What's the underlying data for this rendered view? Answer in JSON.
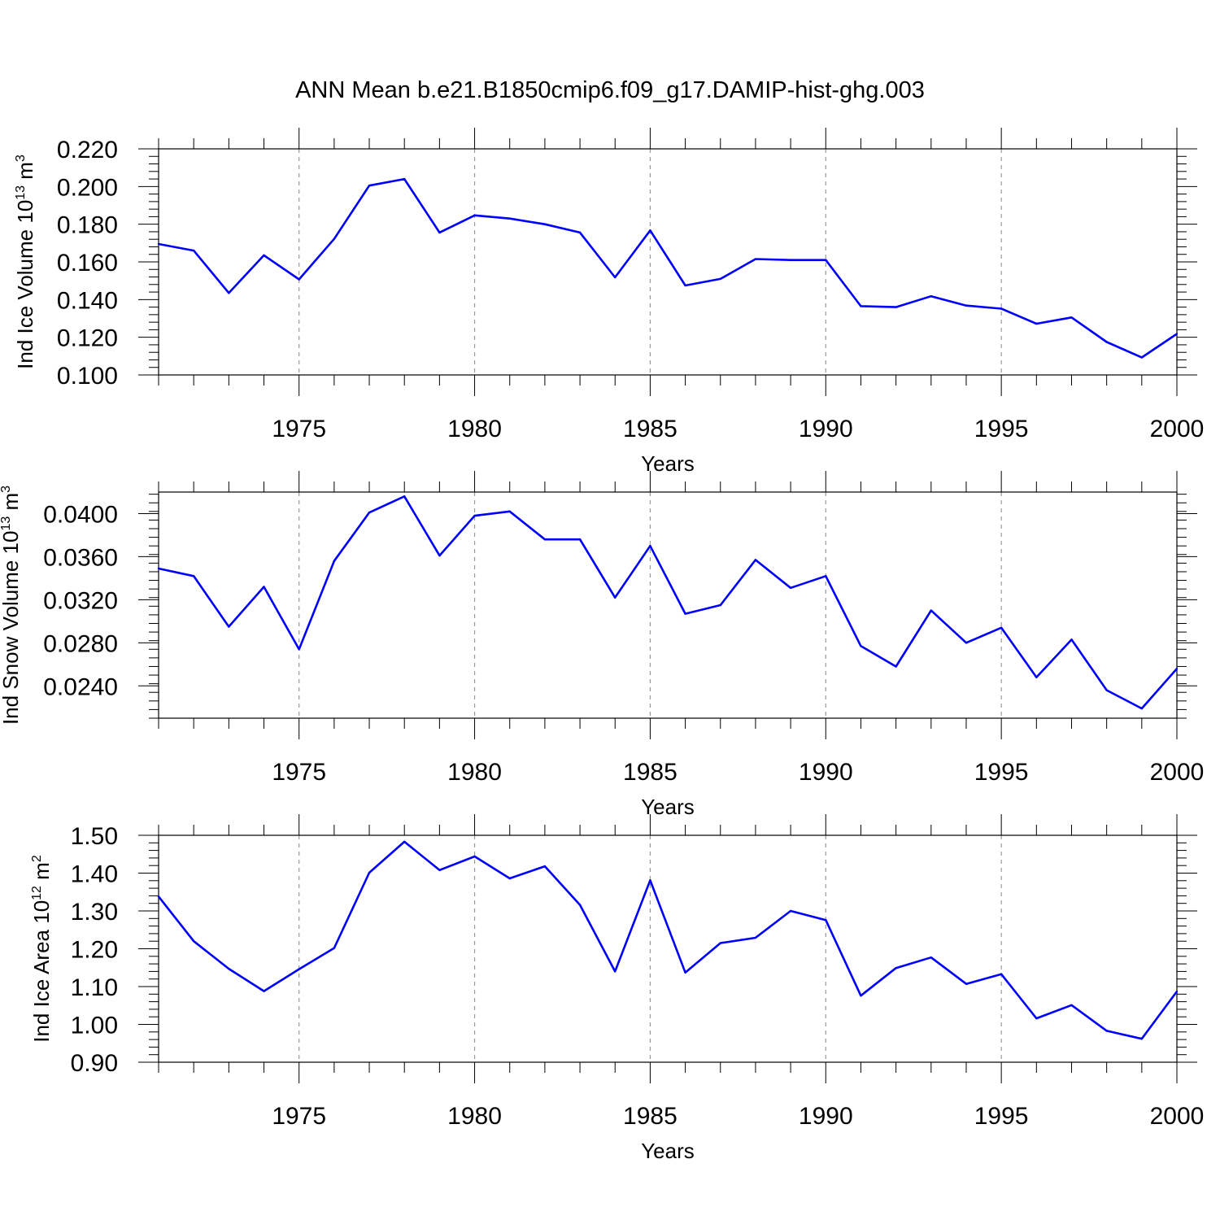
{
  "title": "ANN Mean b.e21.B1850cmip6.f09_g17.DAMIP-hist-ghg.003",
  "colors": {
    "line": "#0000ff",
    "axis": "#000000",
    "grid": "#9a9a9a"
  },
  "chart_data": [
    {
      "type": "line",
      "ylabel": {
        "main": "Ind Ice Volume 10",
        "exp": "13",
        "unit": " m",
        "unit_exp": "3"
      },
      "xlabel": "Years",
      "xlim": [
        1971,
        2000
      ],
      "ylim": [
        0.1,
        0.22
      ],
      "yticks": [
        0.1,
        0.12,
        0.14,
        0.16,
        0.18,
        0.2,
        0.22
      ],
      "ytick_labels": [
        "0.100",
        "0.120",
        "0.140",
        "0.160",
        "0.180",
        "0.200",
        "0.220"
      ],
      "xticks": [
        1975,
        1980,
        1985,
        1990,
        1995,
        2000
      ],
      "xtick_labels": [
        "1975",
        "1980",
        "1985",
        "1990",
        "1995",
        "2000"
      ],
      "grid": "vertical dashed at major x ticks",
      "x": [
        1971,
        1972,
        1973,
        1974,
        1975,
        1976,
        1977,
        1978,
        1979,
        1980,
        1981,
        1982,
        1983,
        1984,
        1985,
        1986,
        1987,
        1988,
        1989,
        1990,
        1991,
        1992,
        1993,
        1994,
        1995,
        1996,
        1997,
        1998,
        1999,
        2000
      ],
      "series": [
        {
          "values": [
            0.1695,
            0.166,
            0.1435,
            0.1635,
            0.1507,
            0.1722,
            0.2005,
            0.204,
            0.1756,
            0.1847,
            0.183,
            0.18,
            0.1756,
            0.1518,
            0.1767,
            0.1475,
            0.151,
            0.1615,
            0.161,
            0.161,
            0.1365,
            0.136,
            0.1418,
            0.1368,
            0.1352,
            0.1272,
            0.1305,
            0.1175,
            0.1093,
            0.1218
          ]
        }
      ]
    },
    {
      "type": "line",
      "ylabel": {
        "main": "Ind Snow Volume 10",
        "exp": "13",
        "unit": " m",
        "unit_exp": "3"
      },
      "xlabel": "Years",
      "xlim": [
        1971,
        2000
      ],
      "ylim": [
        0.021,
        0.042
      ],
      "yticks": [
        0.024,
        0.028,
        0.032,
        0.036,
        0.04
      ],
      "ytick_labels": [
        "0.0240",
        "0.0280",
        "0.0320",
        "0.0360",
        "0.0400"
      ],
      "xticks": [
        1975,
        1980,
        1985,
        1990,
        1995,
        2000
      ],
      "xtick_labels": [
        "1975",
        "1980",
        "1985",
        "1990",
        "1995",
        "2000"
      ],
      "grid": "vertical dashed at major x ticks",
      "x": [
        1971,
        1972,
        1973,
        1974,
        1975,
        1976,
        1977,
        1978,
        1979,
        1980,
        1981,
        1982,
        1983,
        1984,
        1985,
        1986,
        1987,
        1988,
        1989,
        1990,
        1991,
        1992,
        1993,
        1994,
        1995,
        1996,
        1997,
        1998,
        1999,
        2000
      ],
      "series": [
        {
          "values": [
            0.0349,
            0.0342,
            0.0295,
            0.0332,
            0.0274,
            0.0356,
            0.0401,
            0.0416,
            0.0361,
            0.0398,
            0.0402,
            0.0376,
            0.0376,
            0.0322,
            0.037,
            0.0307,
            0.0315,
            0.0357,
            0.0331,
            0.0342,
            0.0277,
            0.0258,
            0.031,
            0.028,
            0.0294,
            0.0248,
            0.0283,
            0.0236,
            0.0219,
            0.0256
          ]
        }
      ]
    },
    {
      "type": "line",
      "ylabel": {
        "main": "Ind Ice Area 10",
        "exp": "12",
        "unit": " m",
        "unit_exp": "2"
      },
      "xlabel": "Years",
      "xlim": [
        1971,
        2000
      ],
      "ylim": [
        0.9,
        1.5
      ],
      "yticks": [
        0.9,
        1.0,
        1.1,
        1.2,
        1.3,
        1.4,
        1.5
      ],
      "ytick_labels": [
        "0.90",
        "1.00",
        "1.10",
        "1.20",
        "1.30",
        "1.40",
        "1.50"
      ],
      "xticks": [
        1975,
        1980,
        1985,
        1990,
        1995,
        2000
      ],
      "xtick_labels": [
        "1975",
        "1980",
        "1985",
        "1990",
        "1995",
        "2000"
      ],
      "grid": "vertical dashed at major x ticks",
      "x": [
        1971,
        1972,
        1973,
        1974,
        1975,
        1976,
        1977,
        1978,
        1979,
        1980,
        1981,
        1982,
        1983,
        1984,
        1985,
        1986,
        1987,
        1988,
        1989,
        1990,
        1991,
        1992,
        1993,
        1994,
        1995,
        1996,
        1997,
        1998,
        1999,
        2000
      ],
      "series": [
        {
          "values": [
            1.338,
            1.22,
            1.147,
            1.088,
            1.146,
            1.202,
            1.401,
            1.483,
            1.408,
            1.444,
            1.386,
            1.418,
            1.316,
            1.14,
            1.381,
            1.137,
            1.215,
            1.229,
            1.3,
            1.276,
            1.076,
            1.149,
            1.177,
            1.107,
            1.133,
            1.016,
            1.051,
            0.983,
            0.962,
            1.087
          ]
        }
      ]
    }
  ]
}
